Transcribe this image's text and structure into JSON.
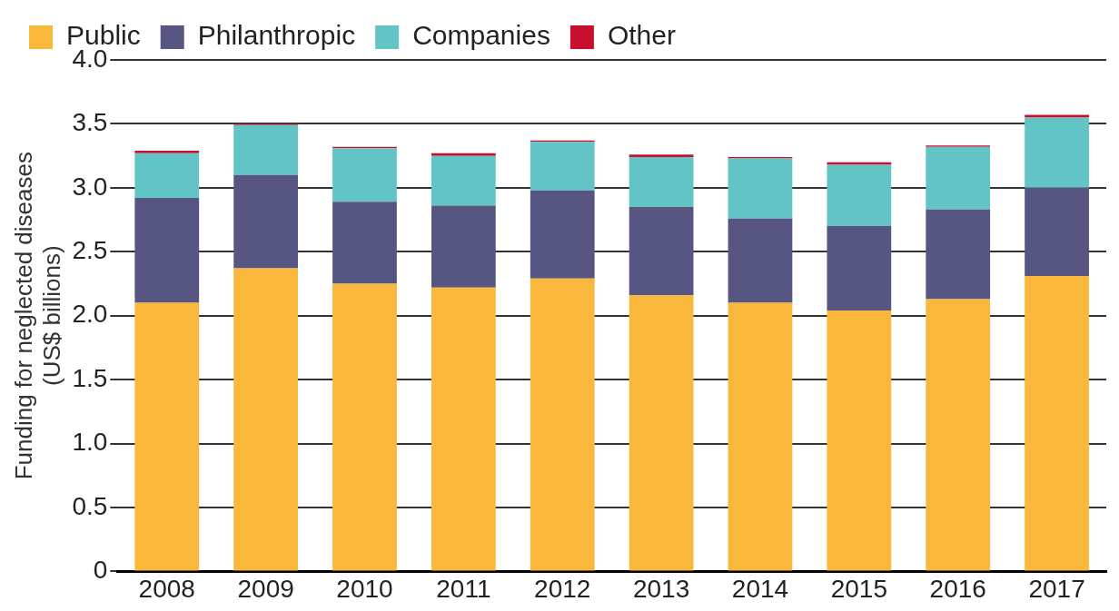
{
  "chart_data": {
    "type": "bar",
    "stacked": true,
    "ylabel": "Funding for neglected diseases\n(US$ billions)",
    "categories": [
      "2008",
      "2009",
      "2010",
      "2011",
      "2012",
      "2013",
      "2014",
      "2015",
      "2016",
      "2017"
    ],
    "series": [
      {
        "name": "Public",
        "color": "#f9b73c",
        "values": [
          2.1,
          2.37,
          2.25,
          2.22,
          2.29,
          2.16,
          2.1,
          2.04,
          2.13,
          2.31
        ]
      },
      {
        "name": "Philanthropic",
        "color": "#575582",
        "values": [
          0.82,
          0.73,
          0.64,
          0.64,
          0.69,
          0.69,
          0.66,
          0.66,
          0.7,
          0.69
        ]
      },
      {
        "name": "Companies",
        "color": "#62c4c4",
        "values": [
          0.35,
          0.39,
          0.42,
          0.39,
          0.38,
          0.39,
          0.47,
          0.48,
          0.49,
          0.55
        ]
      },
      {
        "name": "Other",
        "color": "#c8102e",
        "values": [
          0.02,
          0.01,
          0.01,
          0.02,
          0.01,
          0.02,
          0.01,
          0.02,
          0.01,
          0.02
        ]
      }
    ],
    "ylim": [
      0,
      4
    ],
    "yticks": [
      0,
      {
        "value": 0.5,
        "label": "0.5"
      },
      {
        "value": 1,
        "label": "1.0"
      },
      {
        "value": 1.5,
        "label": "1.5"
      },
      {
        "value": 2,
        "label": "2.0"
      },
      {
        "value": 2.5,
        "label": "2.5"
      },
      {
        "value": 3,
        "label": "3.0"
      },
      {
        "value": 3.5,
        "label": "3.5"
      },
      {
        "value": 4,
        "label": "4.0"
      }
    ],
    "grid": "y",
    "legend": "top left"
  }
}
